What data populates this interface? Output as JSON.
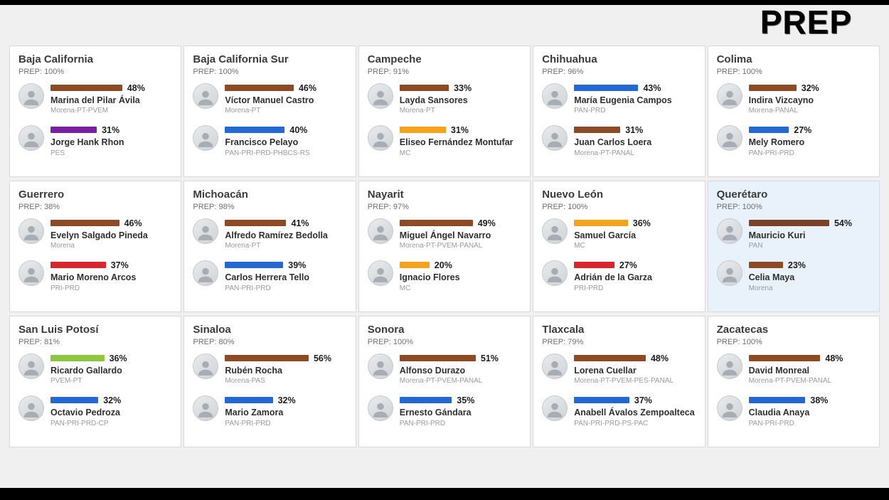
{
  "logo": "PREP",
  "palette": {
    "morena_brown": "#8c4a25",
    "pan_blue": "#2469d3",
    "pes_purple": "#7b1fa2",
    "mc_orange": "#f5a21d",
    "pri_red": "#d8262c",
    "pvem_green": "#8dc63f"
  },
  "chart_data": {
    "type": "bar",
    "title": "PREP",
    "unit": "%",
    "states": [
      {
        "name": "Baja California",
        "prep": "PREP: 100%",
        "highlighted": false,
        "candidates": [
          {
            "name": "Marina del Pilar Ávila",
            "party": "Morena-PT-PVEM",
            "value": 48,
            "label": "48%",
            "color": "#8c4a25"
          },
          {
            "name": "Jorge Hank Rhon",
            "party": "PES",
            "value": 31,
            "label": "31%",
            "color": "#7b1fa2"
          }
        ]
      },
      {
        "name": "Baja California Sur",
        "prep": "PREP: 100%",
        "highlighted": false,
        "candidates": [
          {
            "name": "Víctor Manuel Castro",
            "party": "Morena-PT",
            "value": 46,
            "label": "46%",
            "color": "#8c4a25"
          },
          {
            "name": "Francisco Pelayo",
            "party": "PAN-PRI-PRD-PHBCS-RS",
            "value": 40,
            "label": "40%",
            "color": "#2469d3"
          }
        ]
      },
      {
        "name": "Campeche",
        "prep": "PREP: 91%",
        "highlighted": false,
        "candidates": [
          {
            "name": "Layda Sansores",
            "party": "Morena-PT",
            "value": 33,
            "label": "33%",
            "color": "#8c4a25"
          },
          {
            "name": "Eliseo Fernández Montufar",
            "party": "MC",
            "value": 31,
            "label": "31%",
            "color": "#f5a21d"
          }
        ]
      },
      {
        "name": "Chihuahua",
        "prep": "PREP: 96%",
        "highlighted": false,
        "candidates": [
          {
            "name": "María Eugenia Campos",
            "party": "PAN-PRD",
            "value": 43,
            "label": "43%",
            "color": "#2469d3"
          },
          {
            "name": "Juan Carlos Loera",
            "party": "Morena-PT-PANAL",
            "value": 31,
            "label": "31%",
            "color": "#8c4a25"
          }
        ]
      },
      {
        "name": "Colima",
        "prep": "PREP: 100%",
        "highlighted": false,
        "candidates": [
          {
            "name": "Indira Vizcayno",
            "party": "Morena-PANAL",
            "value": 32,
            "label": "32%",
            "color": "#8c4a25"
          },
          {
            "name": "Mely Romero",
            "party": "PAN-PRI-PRD",
            "value": 27,
            "label": "27%",
            "color": "#2469d3"
          }
        ]
      },
      {
        "name": "Guerrero",
        "prep": "PREP: 38%",
        "highlighted": false,
        "candidates": [
          {
            "name": "Evelyn Salgado Pineda",
            "party": "Morena",
            "value": 46,
            "label": "46%",
            "color": "#8c4a25"
          },
          {
            "name": "Mario Moreno Arcos",
            "party": "PRI-PRD",
            "value": 37,
            "label": "37%",
            "color": "#d8262c"
          }
        ]
      },
      {
        "name": "Michoacán",
        "prep": "PREP: 98%",
        "highlighted": false,
        "candidates": [
          {
            "name": "Alfredo Ramírez Bedolla",
            "party": "Morena-PT",
            "value": 41,
            "label": "41%",
            "color": "#8c4a25"
          },
          {
            "name": "Carlos Herrera Tello",
            "party": "PAN-PRI-PRD",
            "value": 39,
            "label": "39%",
            "color": "#2469d3"
          }
        ]
      },
      {
        "name": "Nayarit",
        "prep": "PREP: 97%",
        "highlighted": false,
        "candidates": [
          {
            "name": "Miguel Ángel Navarro",
            "party": "Morena-PT-PVEM-PANAL",
            "value": 49,
            "label": "49%",
            "color": "#8c4a25"
          },
          {
            "name": "Ignacio Flores",
            "party": "MC",
            "value": 20,
            "label": "20%",
            "color": "#f5a21d"
          }
        ]
      },
      {
        "name": "Nuevo León",
        "prep": "PREP: 100%",
        "highlighted": false,
        "candidates": [
          {
            "name": "Samuel García",
            "party": "MC",
            "value": 36,
            "label": "36%",
            "color": "#f5a21d"
          },
          {
            "name": "Adrián de la Garza",
            "party": "PRI-PRD",
            "value": 27,
            "label": "27%",
            "color": "#d8262c"
          }
        ]
      },
      {
        "name": "Querétaro",
        "prep": "PREP: 100%",
        "highlighted": true,
        "candidates": [
          {
            "name": "Mauricio Kuri",
            "party": "PAN",
            "value": 54,
            "label": "54%",
            "color": "#7a4226"
          },
          {
            "name": "Celia Maya",
            "party": "Morena",
            "value": 23,
            "label": "23%",
            "color": "#8c4a25"
          }
        ]
      },
      {
        "name": "San Luis Potosí",
        "prep": "PREP: 81%",
        "highlighted": false,
        "candidates": [
          {
            "name": "Ricardo Gallardo",
            "party": "PVEM-PT",
            "value": 36,
            "label": "36%",
            "color": "#8dc63f"
          },
          {
            "name": "Octavio Pedroza",
            "party": "PAN-PRI-PRD-CP",
            "value": 32,
            "label": "32%",
            "color": "#2469d3"
          }
        ]
      },
      {
        "name": "Sinaloa",
        "prep": "PREP: 80%",
        "highlighted": false,
        "candidates": [
          {
            "name": "Rubén Rocha",
            "party": "Morena-PAS",
            "value": 56,
            "label": "56%",
            "color": "#8c4a25"
          },
          {
            "name": "Mario Zamora",
            "party": "PAN-PRI-PRD",
            "value": 32,
            "label": "32%",
            "color": "#2469d3"
          }
        ]
      },
      {
        "name": "Sonora",
        "prep": "PREP: 100%",
        "highlighted": false,
        "candidates": [
          {
            "name": "Alfonso Durazo",
            "party": "Morena-PT-PVEM-PANAL",
            "value": 51,
            "label": "51%",
            "color": "#8c4a25"
          },
          {
            "name": "Ernesto Gándara",
            "party": "PAN-PRI-PRD",
            "value": 35,
            "label": "35%",
            "color": "#2469d3"
          }
        ]
      },
      {
        "name": "Tlaxcala",
        "prep": "PREP: 79%",
        "highlighted": false,
        "candidates": [
          {
            "name": "Lorena Cuellar",
            "party": "Morena-PT-PVEM-PES-PANAL",
            "value": 48,
            "label": "48%",
            "color": "#8c4a25"
          },
          {
            "name": "Anabell Ávalos Zempoalteca",
            "party": "PAN-PRI-PRD-PS-PAC",
            "value": 37,
            "label": "37%",
            "color": "#2469d3"
          }
        ]
      },
      {
        "name": "Zacatecas",
        "prep": "PREP: 100%",
        "highlighted": false,
        "candidates": [
          {
            "name": "David Monreal",
            "party": "Morena-PT-PVEM-PANAL",
            "value": 48,
            "label": "48%",
            "color": "#8c4a25"
          },
          {
            "name": "Claudia Anaya",
            "party": "PAN-PRI-PRD",
            "value": 38,
            "label": "38%",
            "color": "#2469d3"
          }
        ]
      }
    ]
  }
}
